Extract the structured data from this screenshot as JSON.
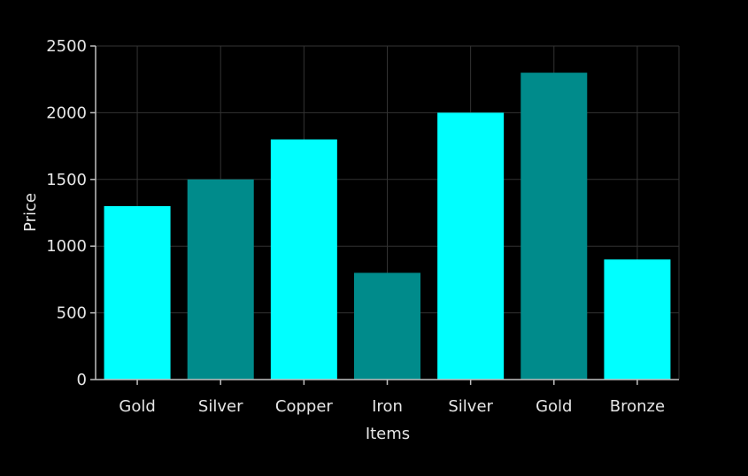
{
  "chart_data": {
    "type": "bar",
    "categories": [
      "Gold",
      "Silver",
      "Copper",
      "Iron",
      "Silver",
      "Gold",
      "Bronze"
    ],
    "values": [
      1300,
      1500,
      1800,
      800,
      2000,
      2300,
      900
    ],
    "bar_colors": [
      "#00ffff",
      "#008b8b",
      "#00ffff",
      "#008b8b",
      "#00ffff",
      "#008b8b",
      "#00ffff"
    ],
    "xlabel": "Items",
    "ylabel": "Price",
    "ylim": [
      0,
      2500
    ],
    "yticks": [
      0,
      500,
      1000,
      1500,
      2000,
      2500
    ],
    "grid": true,
    "background": "#000000"
  }
}
